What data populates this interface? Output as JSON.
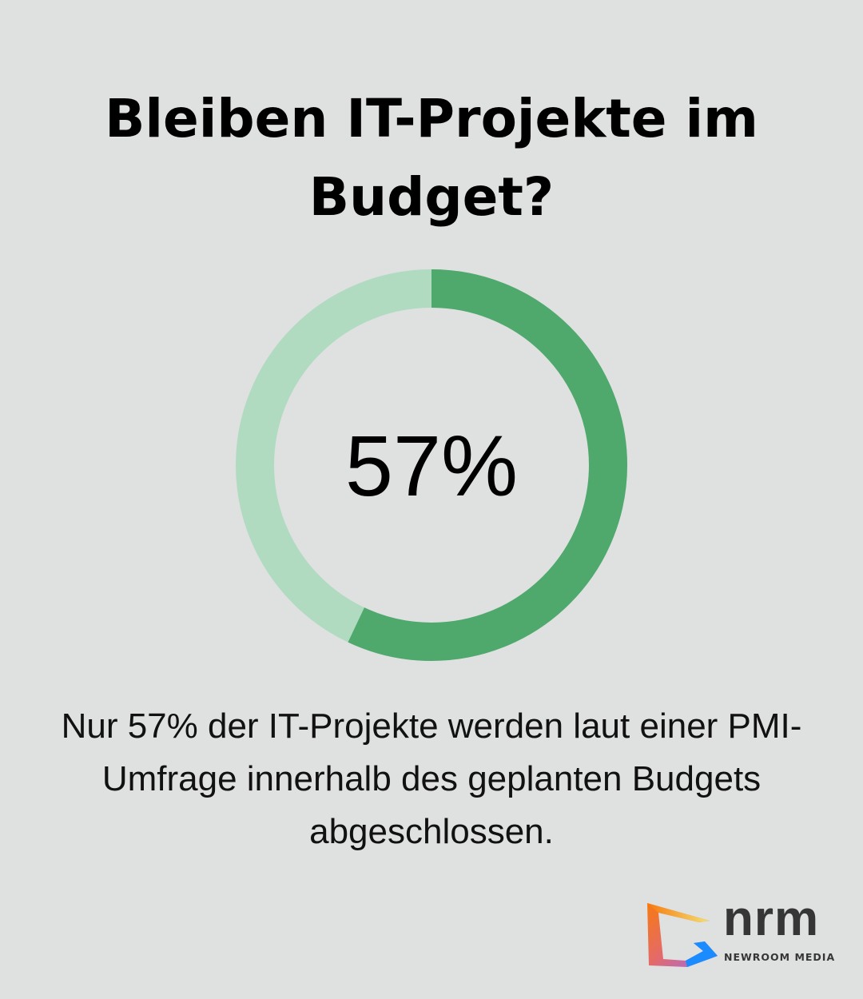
{
  "title": "Bleiben IT-Projekte im Budget?",
  "chart_data": {
    "type": "pie",
    "variant": "donut",
    "values": [
      57,
      43
    ],
    "colors": [
      "#4fa86c",
      "#b0dbc1"
    ],
    "center_label": "57%"
  },
  "description": "Nur 57% der IT-Projekte werden laut einer PMI-Umfrage innerhalb des geplanten Budgets abgeschlossen.",
  "logo": {
    "name": "nrm",
    "subtitle": "NEWROOM MEDIA"
  },
  "background": "#dfe1e0"
}
